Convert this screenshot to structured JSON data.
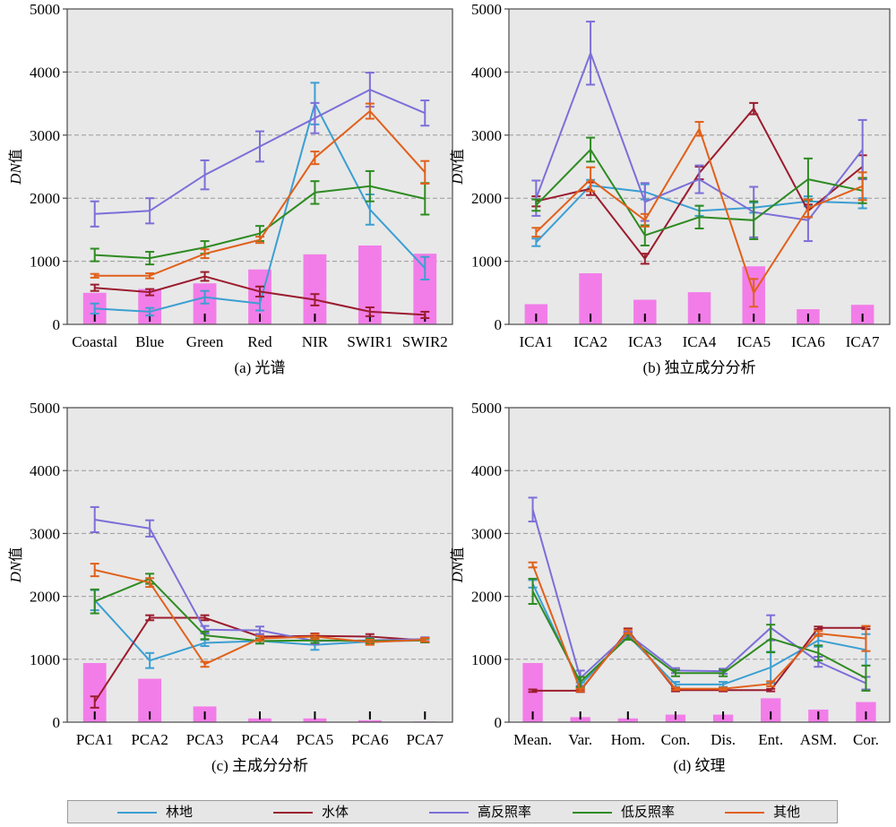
{
  "legend": {
    "items": [
      {
        "label": "林地",
        "color": "#3b9fd2"
      },
      {
        "label": "水体",
        "color": "#9b1c2e"
      },
      {
        "label": "高反照率",
        "color": "#7c6fd8"
      },
      {
        "label": "低反照率",
        "color": "#2e8b22"
      },
      {
        "label": "其他",
        "color": "#e1601a"
      }
    ]
  },
  "chart_data": [
    {
      "type": "line",
      "caption": "(a) 光谱",
      "ylabel_italic": "DN",
      "ylabel_suffix": "值",
      "ylim": [
        0,
        5000
      ],
      "yticks": [
        0,
        1000,
        2000,
        3000,
        4000,
        5000
      ],
      "categories": [
        "Coastal",
        "Blue",
        "Green",
        "Red",
        "NIR",
        "SWIR1",
        "SWIR2"
      ],
      "bars": [
        500,
        560,
        650,
        870,
        1110,
        1250,
        1120
      ],
      "series": [
        {
          "name": "林地",
          "values": [
            250,
            200,
            430,
            330,
            3500,
            1820,
            890
          ],
          "err": [
            80,
            60,
            100,
            110,
            330,
            240,
            180
          ]
        },
        {
          "name": "水体",
          "values": [
            580,
            510,
            760,
            520,
            390,
            200,
            150
          ],
          "err": [
            50,
            50,
            70,
            80,
            90,
            70,
            50
          ]
        },
        {
          "name": "高反照率",
          "values": [
            1750,
            1800,
            2370,
            2820,
            3270,
            3720,
            3350
          ],
          "err": [
            200,
            200,
            230,
            240,
            240,
            270,
            200
          ]
        },
        {
          "name": "低反照率",
          "values": [
            1100,
            1050,
            1220,
            1440,
            2090,
            2190,
            1990
          ],
          "err": [
            100,
            100,
            100,
            120,
            180,
            240,
            250
          ]
        },
        {
          "name": "其他",
          "values": [
            770,
            770,
            1120,
            1340,
            2640,
            3380,
            2410
          ],
          "err": [
            30,
            40,
            70,
            50,
            100,
            120,
            180
          ]
        }
      ]
    },
    {
      "type": "line",
      "caption": "(b) 独立成分分析",
      "ylabel_italic": "DN",
      "ylabel_suffix": "值",
      "ylim": [
        0,
        5000
      ],
      "yticks": [
        0,
        1000,
        2000,
        3000,
        4000,
        5000
      ],
      "categories": [
        "ICA1",
        "ICA2",
        "ICA3",
        "ICA4",
        "ICA5",
        "ICA6",
        "ICA7"
      ],
      "bars": [
        320,
        810,
        390,
        510,
        920,
        240,
        310
      ],
      "series": [
        {
          "name": "林地",
          "values": [
            1300,
            2200,
            2100,
            1800,
            1850,
            1950,
            1920
          ],
          "err": [
            60,
            90,
            120,
            80,
            80,
            80,
            80
          ]
        },
        {
          "name": "水体",
          "values": [
            1950,
            2150,
            1040,
            2400,
            3420,
            1800,
            2500
          ],
          "err": [
            80,
            100,
            80,
            100,
            90,
            100,
            180
          ]
        },
        {
          "name": "高反照率",
          "values": [
            2000,
            4300,
            1940,
            2300,
            1780,
            1650,
            2770
          ],
          "err": [
            280,
            500,
            300,
            220,
            400,
            330,
            470
          ]
        },
        {
          "name": "低反照率",
          "values": [
            1890,
            2770,
            1410,
            1700,
            1650,
            2300,
            2120
          ],
          "err": [
            90,
            190,
            160,
            180,
            300,
            330,
            200
          ]
        },
        {
          "name": "其他",
          "values": [
            1460,
            2300,
            1650,
            3100,
            500,
            1840,
            2190
          ],
          "err": [
            70,
            190,
            100,
            110,
            220,
            140,
            220
          ]
        }
      ]
    },
    {
      "type": "line",
      "caption": "(c) 主成分分析",
      "ylabel_italic": "DN",
      "ylabel_suffix": "值",
      "ylim": [
        0,
        5000
      ],
      "yticks": [
        0,
        1000,
        2000,
        3000,
        4000,
        5000
      ],
      "categories": [
        "PCA1",
        "PCA2",
        "PCA3",
        "PCA4",
        "PCA5",
        "PCA6",
        "PCA7"
      ],
      "bars": [
        940,
        690,
        250,
        60,
        60,
        30,
        10
      ],
      "series": [
        {
          "name": "林地",
          "values": [
            1940,
            980,
            1260,
            1290,
            1230,
            1280,
            1300
          ],
          "err": [
            160,
            120,
            50,
            40,
            80,
            40,
            30
          ]
        },
        {
          "name": "水体",
          "values": [
            320,
            1660,
            1660,
            1360,
            1370,
            1360,
            1300
          ],
          "err": [
            90,
            40,
            40,
            40,
            40,
            40,
            30
          ]
        },
        {
          "name": "高反照率",
          "values": [
            3220,
            3080,
            1470,
            1460,
            1290,
            1300,
            1320
          ],
          "err": [
            200,
            130,
            60,
            60,
            50,
            40,
            30
          ]
        },
        {
          "name": "低反照率",
          "values": [
            1920,
            2280,
            1380,
            1290,
            1300,
            1290,
            1300
          ],
          "err": [
            190,
            80,
            60,
            40,
            40,
            40,
            30
          ]
        },
        {
          "name": "其他",
          "values": [
            2420,
            2220,
            920,
            1330,
            1360,
            1270,
            1310
          ],
          "err": [
            100,
            70,
            40,
            40,
            40,
            40,
            30
          ]
        }
      ]
    },
    {
      "type": "line",
      "caption": "(d) 纹理",
      "ylabel_italic": "DN",
      "ylabel_suffix": "值",
      "ylim": [
        0,
        5000
      ],
      "yticks": [
        0,
        1000,
        2000,
        3000,
        4000,
        5000
      ],
      "categories": [
        "Mean.",
        "Var.",
        "Hom.",
        "Con.",
        "Dis.",
        "Ent.",
        "ASM.",
        "Cor."
      ],
      "bars": [
        940,
        80,
        60,
        120,
        120,
        380,
        200,
        320
      ],
      "series": [
        {
          "name": "林地",
          "values": [
            2200,
            590,
            1380,
            600,
            600,
            870,
            1300,
            1150
          ],
          "err": [
            60,
            40,
            40,
            40,
            40,
            250,
            100,
            250
          ]
        },
        {
          "name": "水体",
          "values": [
            500,
            500,
            1460,
            510,
            510,
            510,
            1500,
            1500
          ],
          "err": [
            20,
            20,
            30,
            20,
            20,
            20,
            20,
            20
          ]
        },
        {
          "name": "高反照率",
          "values": [
            3380,
            700,
            1400,
            820,
            810,
            1500,
            960,
            620
          ],
          "err": [
            190,
            120,
            40,
            40,
            40,
            200,
            80,
            100
          ]
        },
        {
          "name": "低反照率",
          "values": [
            2080,
            640,
            1350,
            780,
            780,
            1330,
            1100,
            700
          ],
          "err": [
            200,
            80,
            40,
            50,
            50,
            220,
            120,
            200
          ]
        },
        {
          "name": "其他",
          "values": [
            2500,
            510,
            1440,
            530,
            530,
            610,
            1410,
            1330
          ],
          "err": [
            40,
            20,
            30,
            20,
            20,
            40,
            40,
            200
          ]
        }
      ]
    }
  ]
}
